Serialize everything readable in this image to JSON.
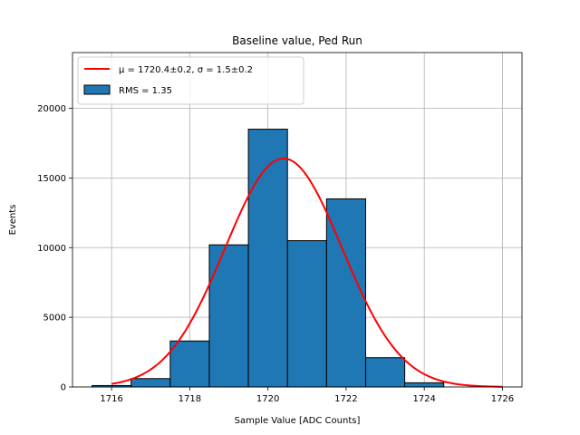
{
  "chart_data": {
    "type": "bar",
    "title": "Baseline value, Ped Run",
    "xlabel": "Sample Value [ADC Counts]",
    "ylabel": "Events",
    "xlim": [
      1715,
      1726.5
    ],
    "ylim": [
      0,
      24000
    ],
    "x_ticks": [
      1716,
      1718,
      1720,
      1722,
      1724,
      1726
    ],
    "y_ticks": [
      0,
      5000,
      10000,
      15000,
      20000
    ],
    "grid": true,
    "legend_placement": "top-left",
    "bar_color": "#1f77b4",
    "fit_color": "#ff0000",
    "bins": [
      {
        "x0": 1715.5,
        "x1": 1716.5,
        "value": 100
      },
      {
        "x0": 1716.5,
        "x1": 1717.5,
        "value": 600
      },
      {
        "x0": 1717.5,
        "x1": 1718.5,
        "value": 3300
      },
      {
        "x0": 1718.5,
        "x1": 1719.5,
        "value": 10200
      },
      {
        "x0": 1719.5,
        "x1": 1720.5,
        "value": 18500
      },
      {
        "x0": 1720.5,
        "x1": 1721.5,
        "value": 10500
      },
      {
        "x0": 1721.5,
        "x1": 1722.5,
        "value": 13500
      },
      {
        "x0": 1722.5,
        "x1": 1723.5,
        "value": 2100
      },
      {
        "x0": 1723.5,
        "x1": 1724.5,
        "value": 300
      },
      {
        "x0": 1724.5,
        "x1": 1725.5,
        "value": 0
      }
    ],
    "fit": {
      "mu": 1720.4,
      "sigma": 1.5,
      "amplitude": 16400,
      "x_range": [
        1716,
        1726
      ]
    },
    "legend": [
      {
        "kind": "line",
        "label": "μ = 1720.4±0.2, σ = 1.5±0.2"
      },
      {
        "kind": "patch",
        "label": "RMS = 1.35"
      }
    ]
  }
}
